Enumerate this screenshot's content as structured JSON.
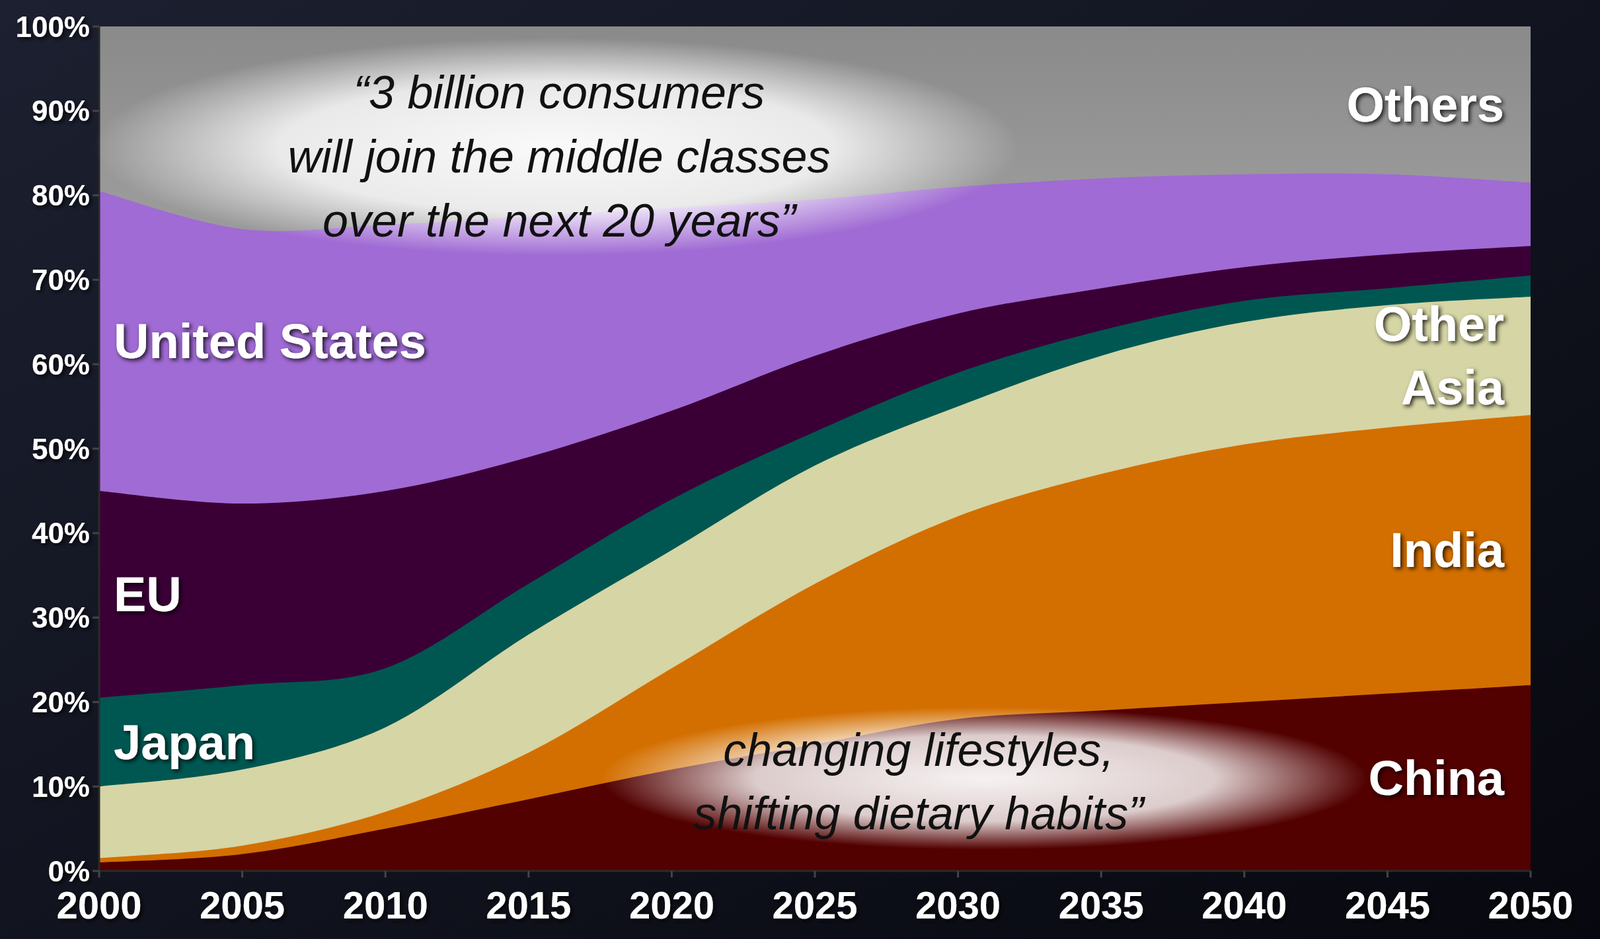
{
  "chart_data": {
    "type": "area",
    "stacked": true,
    "grid": false,
    "x": [
      2000,
      2005,
      2010,
      2015,
      2020,
      2025,
      2030,
      2035,
      2040,
      2045,
      2050
    ],
    "xlim": [
      2000,
      2050
    ],
    "xticks": [
      2000,
      2005,
      2010,
      2015,
      2020,
      2025,
      2030,
      2035,
      2040,
      2045,
      2050
    ],
    "ylim": [
      0,
      100
    ],
    "yticks": [
      {
        "value": 0,
        "label": "0%"
      },
      {
        "value": 10,
        "label": "10%"
      },
      {
        "value": 20,
        "label": "20%"
      },
      {
        "value": 30,
        "label": "30%"
      },
      {
        "value": 40,
        "label": "40%"
      },
      {
        "value": 50,
        "label": "50%"
      },
      {
        "value": 60,
        "label": "60%"
      },
      {
        "value": 70,
        "label": "70%"
      },
      {
        "value": 80,
        "label": "80%"
      },
      {
        "value": 90,
        "label": "90%"
      },
      {
        "value": 100,
        "label": "100%"
      }
    ],
    "series": [
      {
        "name": "China",
        "color": "#520000",
        "values": [
          1,
          2,
          5,
          8.5,
          12,
          15,
          18,
          19,
          20,
          21,
          22
        ]
      },
      {
        "name": "India",
        "color": "#d36f00",
        "values": [
          0.5,
          1,
          2,
          5.5,
          12,
          19,
          24,
          28,
          30.5,
          31.5,
          32
        ]
      },
      {
        "name": "Other Asia",
        "color": "#d6d5a5",
        "values": [
          8.5,
          9,
          10,
          14,
          14,
          14,
          13,
          14,
          14.5,
          14.5,
          14
        ]
      },
      {
        "name": "Japan",
        "color": "#005752",
        "values": [
          10.5,
          10,
          7,
          6,
          6,
          4,
          4,
          3,
          2.5,
          2,
          2.5
        ]
      },
      {
        "name": "EU",
        "color": "#3a0036",
        "values": [
          24.5,
          21.5,
          21,
          15,
          10.5,
          9,
          7,
          5,
          4,
          4,
          3.5
        ]
      },
      {
        "name": "United States",
        "color": "#a06bd4",
        "values": [
          35.5,
          32.5,
          31.5,
          28.5,
          24,
          18.5,
          15,
          13,
          11,
          9.5,
          7.5
        ]
      },
      {
        "name": "Others",
        "color": "#959595",
        "values": [
          19.5,
          24,
          23.5,
          22.5,
          21.5,
          20.5,
          19,
          18,
          17.5,
          17.5,
          18.5
        ]
      }
    ],
    "annotations": [
      {
        "lines": [
          "“3 billion consumers",
          "will join the middle classes",
          "over the next 20 years”"
        ]
      },
      {
        "lines": [
          "changing lifestyles,",
          "shifting dietary habits”"
        ]
      }
    ]
  }
}
